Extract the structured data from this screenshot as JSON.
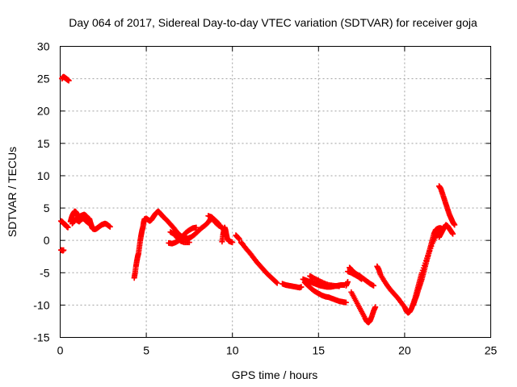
{
  "chart_data": {
    "type": "scatter",
    "title": "Day 064 of 2017, Sidereal Day-to-day VTEC variation (SDTVAR) for receiver goja",
    "xlabel": "GPS time / hours",
    "ylabel": "SDTVAR / TECUs",
    "xlim": [
      0,
      25
    ],
    "ylim": [
      -15,
      30
    ],
    "xticks": [
      0,
      5,
      10,
      15,
      20,
      25
    ],
    "yticks": [
      -15,
      -10,
      -5,
      0,
      5,
      10,
      15,
      20,
      25,
      30
    ],
    "grid": true,
    "marker": "plus",
    "color": "#ff0000",
    "segments": [
      [
        [
          0.05,
          -1.5
        ],
        [
          0.1,
          -1.5
        ],
        [
          0.15,
          -1.6
        ],
        [
          0.2,
          -1.5
        ]
      ],
      [
        [
          0.1,
          25.0
        ],
        [
          0.15,
          25.2
        ],
        [
          0.2,
          25.3
        ],
        [
          0.25,
          25.2
        ],
        [
          0.3,
          25.1
        ],
        [
          0.35,
          25.0
        ],
        [
          0.4,
          24.9
        ],
        [
          0.45,
          24.8
        ],
        [
          0.5,
          24.7
        ]
      ],
      [
        [
          0.05,
          3.0
        ],
        [
          0.1,
          2.9
        ],
        [
          0.15,
          2.8
        ],
        [
          0.2,
          2.6
        ],
        [
          0.25,
          2.5
        ],
        [
          0.3,
          2.4
        ],
        [
          0.35,
          2.3
        ],
        [
          0.4,
          2.1
        ],
        [
          0.45,
          2.0
        ]
      ],
      [
        [
          0.6,
          2.9
        ],
        [
          0.65,
          3.4
        ],
        [
          0.7,
          3.8
        ],
        [
          0.75,
          4.1
        ],
        [
          0.8,
          4.3
        ],
        [
          0.85,
          4.5
        ],
        [
          0.9,
          4.4
        ],
        [
          0.95,
          4.2
        ],
        [
          1.0,
          4.0
        ],
        [
          1.05,
          3.6
        ],
        [
          1.1,
          3.3
        ],
        [
          1.15,
          3.5
        ],
        [
          1.2,
          3.8
        ],
        [
          1.3,
          3.9
        ],
        [
          1.4,
          4.0
        ],
        [
          1.5,
          3.8
        ],
        [
          1.6,
          3.5
        ],
        [
          1.7,
          3.3
        ],
        [
          1.75,
          2.8
        ],
        [
          1.8,
          2.4
        ],
        [
          1.85,
          2.0
        ],
        [
          1.9,
          1.8
        ],
        [
          2.0,
          1.7
        ],
        [
          2.1,
          1.8
        ],
        [
          2.2,
          2.0
        ],
        [
          2.3,
          2.2
        ],
        [
          2.4,
          2.4
        ],
        [
          2.5,
          2.5
        ],
        [
          2.6,
          2.6
        ],
        [
          2.7,
          2.5
        ],
        [
          2.8,
          2.3
        ],
        [
          2.9,
          2.1
        ]
      ],
      [
        [
          0.7,
          2.6
        ],
        [
          0.8,
          3.0
        ],
        [
          0.9,
          3.2
        ],
        [
          1.0,
          3.1
        ],
        [
          1.1,
          2.9
        ],
        [
          1.2,
          3.2
        ],
        [
          1.3,
          3.4
        ],
        [
          1.4,
          3.3
        ],
        [
          1.5,
          3.0
        ],
        [
          1.6,
          2.8
        ],
        [
          1.7,
          2.6
        ]
      ],
      [
        [
          4.3,
          -5.8
        ],
        [
          4.35,
          -5.0
        ],
        [
          4.4,
          -4.0
        ],
        [
          4.45,
          -3.2
        ],
        [
          4.5,
          -2.5
        ],
        [
          4.55,
          -2.0
        ],
        [
          4.6,
          -1.0
        ],
        [
          4.65,
          0.0
        ],
        [
          4.7,
          0.8
        ],
        [
          4.75,
          1.5
        ],
        [
          4.8,
          2.0
        ],
        [
          4.85,
          2.8
        ],
        [
          4.9,
          3.3
        ],
        [
          5.0,
          3.4
        ],
        [
          5.1,
          3.2
        ],
        [
          5.2,
          3.0
        ],
        [
          5.3,
          3.2
        ],
        [
          5.4,
          3.6
        ],
        [
          5.5,
          4.0
        ],
        [
          5.6,
          4.3
        ],
        [
          5.7,
          4.5
        ],
        [
          5.8,
          4.2
        ],
        [
          5.9,
          3.9
        ],
        [
          6.0,
          3.6
        ],
        [
          6.2,
          3.1
        ],
        [
          6.4,
          2.5
        ],
        [
          6.6,
          1.9
        ],
        [
          6.8,
          1.2
        ],
        [
          7.0,
          0.7
        ],
        [
          7.2,
          0.4
        ],
        [
          7.4,
          0.3
        ],
        [
          7.6,
          0.5
        ],
        [
          7.8,
          0.9
        ],
        [
          8.0,
          1.4
        ],
        [
          8.2,
          1.9
        ],
        [
          8.4,
          2.3
        ],
        [
          8.6,
          2.8
        ],
        [
          8.7,
          3.2
        ],
        [
          8.8,
          3.5
        ],
        [
          8.9,
          3.2
        ],
        [
          9.0,
          2.8
        ],
        [
          9.2,
          2.3
        ],
        [
          9.4,
          2.0
        ],
        [
          9.5,
          1.6
        ]
      ],
      [
        [
          6.3,
          -0.4
        ],
        [
          6.5,
          -0.5
        ],
        [
          6.7,
          -0.3
        ],
        [
          6.9,
          0.0
        ],
        [
          7.1,
          0.6
        ],
        [
          7.3,
          1.2
        ],
        [
          7.5,
          1.6
        ],
        [
          7.7,
          1.9
        ],
        [
          7.9,
          2.0
        ]
      ],
      [
        [
          6.4,
          1.3
        ],
        [
          6.6,
          1.0
        ],
        [
          6.8,
          0.4
        ],
        [
          7.0,
          -0.1
        ],
        [
          7.2,
          -0.3
        ],
        [
          7.5,
          -0.3
        ]
      ],
      [
        [
          8.6,
          3.8
        ],
        [
          8.8,
          3.6
        ],
        [
          9.0,
          3.1
        ],
        [
          9.2,
          2.6
        ]
      ],
      [
        [
          9.4,
          -0.2
        ],
        [
          9.45,
          0.8
        ],
        [
          9.5,
          1.5
        ],
        [
          9.55,
          2.0
        ],
        [
          9.6,
          1.6
        ],
        [
          9.65,
          0.9
        ],
        [
          9.7,
          0.3
        ],
        [
          9.8,
          -0.1
        ],
        [
          9.9,
          -0.2
        ],
        [
          10.0,
          -0.3
        ]
      ],
      [
        [
          10.2,
          0.8
        ],
        [
          10.3,
          0.5
        ],
        [
          10.4,
          0.2
        ]
      ],
      [
        [
          10.5,
          -0.3
        ],
        [
          10.6,
          -0.6
        ],
        [
          10.8,
          -1.3
        ],
        [
          11.0,
          -1.9
        ],
        [
          11.2,
          -2.6
        ],
        [
          11.4,
          -3.3
        ],
        [
          11.6,
          -3.9
        ],
        [
          11.8,
          -4.5
        ],
        [
          12.0,
          -5.1
        ],
        [
          12.2,
          -5.6
        ],
        [
          12.4,
          -6.1
        ],
        [
          12.6,
          -6.6
        ]
      ],
      [
        [
          12.9,
          -6.7
        ],
        [
          13.1,
          -6.9
        ],
        [
          13.3,
          -7.0
        ],
        [
          13.5,
          -7.1
        ],
        [
          13.7,
          -7.2
        ],
        [
          13.9,
          -7.3
        ],
        [
          14.0,
          -7.2
        ]
      ],
      [
        [
          14.1,
          -6.0
        ],
        [
          14.3,
          -6.2
        ],
        [
          14.5,
          -6.4
        ],
        [
          14.7,
          -6.6
        ],
        [
          14.9,
          -6.8
        ],
        [
          15.1,
          -7.0
        ],
        [
          15.3,
          -7.1
        ],
        [
          15.5,
          -7.2
        ],
        [
          15.7,
          -7.2
        ],
        [
          15.9,
          -7.1
        ],
        [
          16.1,
          -7.0
        ],
        [
          16.3,
          -6.9
        ],
        [
          16.5,
          -6.9
        ]
      ],
      [
        [
          14.2,
          -6.5
        ],
        [
          14.4,
          -7.0
        ],
        [
          14.6,
          -7.5
        ],
        [
          14.8,
          -7.9
        ],
        [
          15.0,
          -8.2
        ],
        [
          15.2,
          -8.5
        ],
        [
          15.4,
          -8.7
        ],
        [
          15.6,
          -8.8
        ],
        [
          15.8,
          -9.0
        ],
        [
          16.0,
          -9.2
        ],
        [
          16.2,
          -9.4
        ],
        [
          16.4,
          -9.5
        ],
        [
          16.6,
          -9.6
        ]
      ],
      [
        [
          14.5,
          -5.5
        ],
        [
          14.7,
          -5.8
        ],
        [
          15.0,
          -6.2
        ],
        [
          15.3,
          -6.6
        ],
        [
          15.6,
          -6.9
        ],
        [
          15.9,
          -7.0
        ],
        [
          16.2,
          -7.1
        ]
      ],
      [
        [
          16.6,
          -7.0
        ],
        [
          16.7,
          -6.4
        ]
      ],
      [
        [
          16.8,
          -4.2
        ],
        [
          16.9,
          -4.5
        ],
        [
          17.0,
          -4.8
        ],
        [
          17.2,
          -5.2
        ],
        [
          17.4,
          -5.5
        ],
        [
          17.6,
          -5.9
        ],
        [
          17.8,
          -6.3
        ],
        [
          18.0,
          -6.7
        ],
        [
          18.2,
          -7.0
        ]
      ],
      [
        [
          16.7,
          -4.8
        ],
        [
          16.9,
          -5.0
        ],
        [
          17.1,
          -5.3
        ],
        [
          17.3,
          -5.6
        ],
        [
          17.5,
          -6.0
        ]
      ],
      [
        [
          16.9,
          -8.0
        ],
        [
          17.1,
          -9.0
        ],
        [
          17.3,
          -10.0
        ],
        [
          17.5,
          -11.0
        ],
        [
          17.7,
          -12.0
        ],
        [
          17.8,
          -12.5
        ],
        [
          17.9,
          -12.7
        ],
        [
          18.0,
          -12.4
        ],
        [
          18.1,
          -11.7
        ],
        [
          18.2,
          -10.9
        ],
        [
          18.3,
          -10.3
        ]
      ],
      [
        [
          18.4,
          -4.0
        ],
        [
          18.5,
          -4.5
        ],
        [
          18.6,
          -5.3
        ],
        [
          18.8,
          -6.2
        ],
        [
          19.0,
          -7.0
        ],
        [
          19.2,
          -7.7
        ],
        [
          19.4,
          -8.3
        ],
        [
          19.6,
          -8.9
        ],
        [
          19.8,
          -9.6
        ],
        [
          20.0,
          -10.3
        ],
        [
          20.1,
          -10.9
        ],
        [
          20.2,
          -11.2
        ],
        [
          20.3,
          -11.0
        ],
        [
          20.4,
          -10.5
        ],
        [
          20.5,
          -9.8
        ],
        [
          20.6,
          -9.0
        ],
        [
          20.7,
          -8.0
        ],
        [
          20.8,
          -7.0
        ],
        [
          20.9,
          -6.0
        ],
        [
          21.0,
          -5.0
        ],
        [
          21.2,
          -3.5
        ],
        [
          21.4,
          -2.0
        ],
        [
          21.6,
          -0.5
        ],
        [
          21.8,
          0.6
        ],
        [
          22.0,
          1.2
        ]
      ],
      [
        [
          20.5,
          -10.0
        ],
        [
          20.6,
          -9.2
        ],
        [
          20.7,
          -8.5
        ],
        [
          20.8,
          -7.6
        ],
        [
          20.9,
          -6.8
        ],
        [
          21.0,
          -6.0
        ],
        [
          21.1,
          -5.0
        ],
        [
          21.2,
          -4.0
        ],
        [
          21.3,
          -3.0
        ],
        [
          21.4,
          -2.0
        ],
        [
          21.5,
          -1.0
        ],
        [
          21.6,
          0.0
        ],
        [
          21.7,
          1.0
        ],
        [
          21.8,
          1.6
        ],
        [
          21.9,
          1.8
        ],
        [
          22.0,
          1.9
        ],
        [
          22.1,
          1.9
        ],
        [
          22.2,
          1.7
        ]
      ],
      [
        [
          22.0,
          0.5
        ],
        [
          22.1,
          1.0
        ],
        [
          22.2,
          1.5
        ],
        [
          22.3,
          2.0
        ],
        [
          22.4,
          2.4
        ],
        [
          22.5,
          2.2
        ],
        [
          22.6,
          1.8
        ],
        [
          22.7,
          1.4
        ],
        [
          22.8,
          1.0
        ]
      ],
      [
        [
          22.0,
          8.4
        ],
        [
          22.1,
          8.0
        ],
        [
          22.2,
          7.2
        ],
        [
          22.3,
          6.4
        ],
        [
          22.4,
          5.6
        ],
        [
          22.5,
          4.8
        ],
        [
          22.6,
          4.0
        ],
        [
          22.7,
          3.4
        ],
        [
          22.8,
          2.8
        ],
        [
          22.9,
          2.4
        ]
      ]
    ]
  }
}
